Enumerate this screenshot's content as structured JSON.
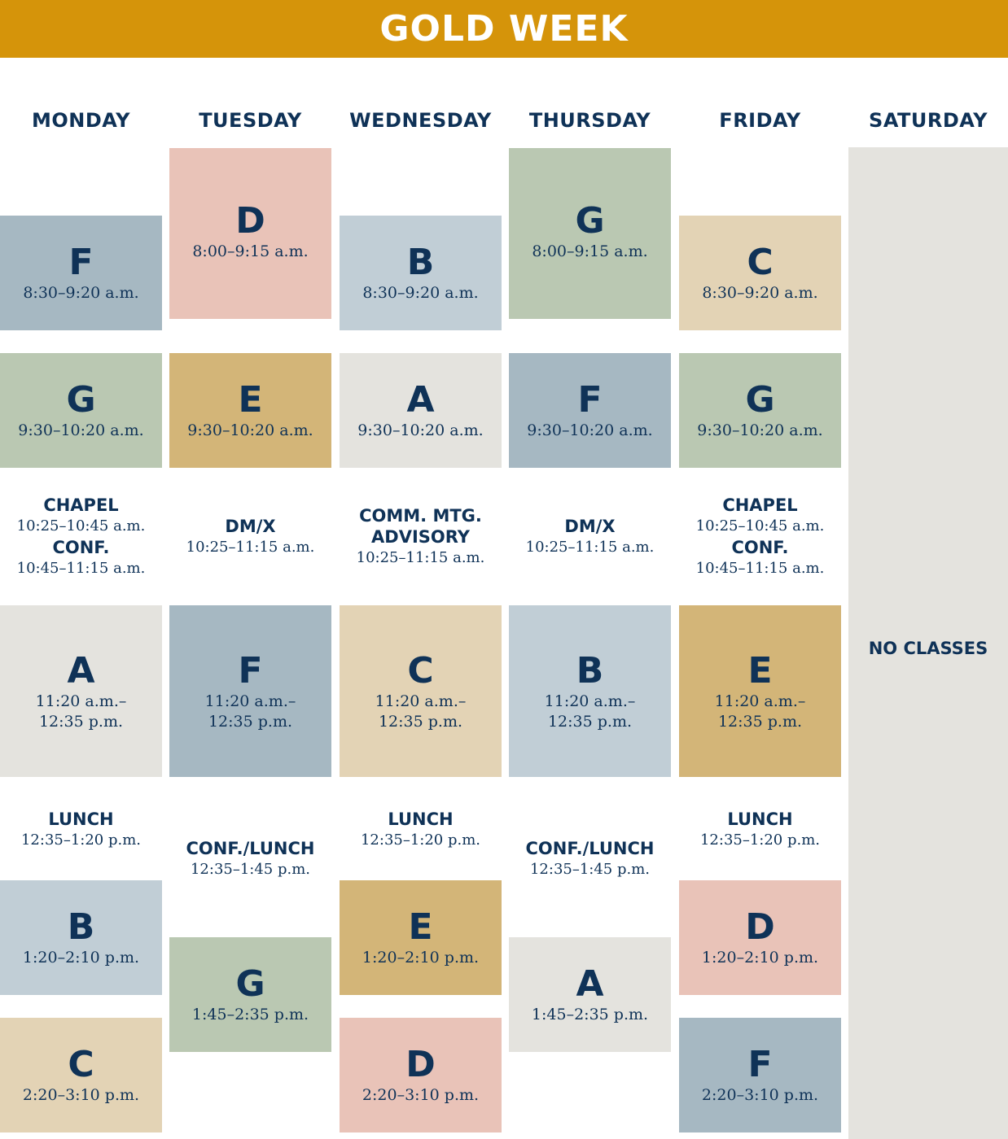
{
  "title": "GOLD WEEK",
  "colors": {
    "banner": "#d5940a",
    "text": "#0f3257",
    "A": "#e4e3de",
    "B": "#c1ced6",
    "C": "#e3d3b5",
    "D": "#e9c3b8",
    "E": "#d3b578",
    "F": "#a6b8c2",
    "G": "#bac8b2"
  },
  "days": [
    "MONDAY",
    "TUESDAY",
    "WEDNESDAY",
    "THURSDAY",
    "FRIDAY",
    "SATURDAY"
  ],
  "saturday_note": "NO CLASSES",
  "monday": {
    "b1": {
      "letter": "F",
      "time": "8:30–9:20 a.m."
    },
    "b2": {
      "letter": "G",
      "time": "9:30–10:20 a.m."
    },
    "e1_label": "CHAPEL",
    "e1_time": "10:25–10:45 a.m.",
    "e2_label": "CONF.",
    "e2_time": "10:45–11:15 a.m.",
    "b3": {
      "letter": "A",
      "time": "11:20 a.m.–\n12:35 p.m."
    },
    "lunch_label": "LUNCH",
    "lunch_time": "12:35–1:20 p.m.",
    "b4": {
      "letter": "B",
      "time": "1:20–2:10 p.m."
    },
    "b5": {
      "letter": "C",
      "time": "2:20–3:10 p.m."
    }
  },
  "tuesday": {
    "b1": {
      "letter": "D",
      "time": "8:00–9:15 a.m."
    },
    "b2": {
      "letter": "E",
      "time": "9:30–10:20 a.m."
    },
    "e1_label": "DM/X",
    "e1_time": "10:25–11:15 a.m.",
    "b3": {
      "letter": "F",
      "time": "11:20 a.m.–\n12:35 p.m."
    },
    "lunch_label": "CONF./LUNCH",
    "lunch_time": "12:35–1:45 p.m.",
    "b4": {
      "letter": "G",
      "time": "1:45–2:35 p.m."
    }
  },
  "wednesday": {
    "b1": {
      "letter": "B",
      "time": "8:30–9:20 a.m."
    },
    "b2": {
      "letter": "A",
      "time": "9:30–10:20 a.m."
    },
    "e1_label": "COMM. MTG.",
    "e2_label": "ADVISORY",
    "e1_time": "10:25–11:15 a.m.",
    "b3": {
      "letter": "C",
      "time": "11:20 a.m.–\n12:35 p.m."
    },
    "lunch_label": "LUNCH",
    "lunch_time": "12:35–1:20 p.m.",
    "b4": {
      "letter": "E",
      "time": "1:20–2:10 p.m."
    },
    "b5": {
      "letter": "D",
      "time": "2:20–3:10 p.m."
    }
  },
  "thursday": {
    "b1": {
      "letter": "G",
      "time": "8:00–9:15 a.m."
    },
    "b2": {
      "letter": "F",
      "time": "9:30–10:20 a.m."
    },
    "e1_label": "DM/X",
    "e1_time": "10:25–11:15 a.m.",
    "b3": {
      "letter": "B",
      "time": "11:20 a.m.–\n12:35 p.m."
    },
    "lunch_label": "CONF./LUNCH",
    "lunch_time": "12:35–1:45 p.m.",
    "b4": {
      "letter": "A",
      "time": "1:45–2:35 p.m."
    }
  },
  "friday": {
    "b1": {
      "letter": "C",
      "time": "8:30–9:20 a.m."
    },
    "b2": {
      "letter": "G",
      "time": "9:30–10:20 a.m."
    },
    "e1_label": "CHAPEL",
    "e1_time": "10:25–10:45 a.m.",
    "e2_label": "CONF.",
    "e2_time": "10:45–11:15 a.m.",
    "b3": {
      "letter": "E",
      "time": "11:20 a.m.–\n12:35 p.m."
    },
    "lunch_label": "LUNCH",
    "lunch_time": "12:35–1:20 p.m.",
    "b4": {
      "letter": "D",
      "time": "1:20–2:10 p.m."
    },
    "b5": {
      "letter": "F",
      "time": "2:20–3:10 p.m."
    }
  }
}
